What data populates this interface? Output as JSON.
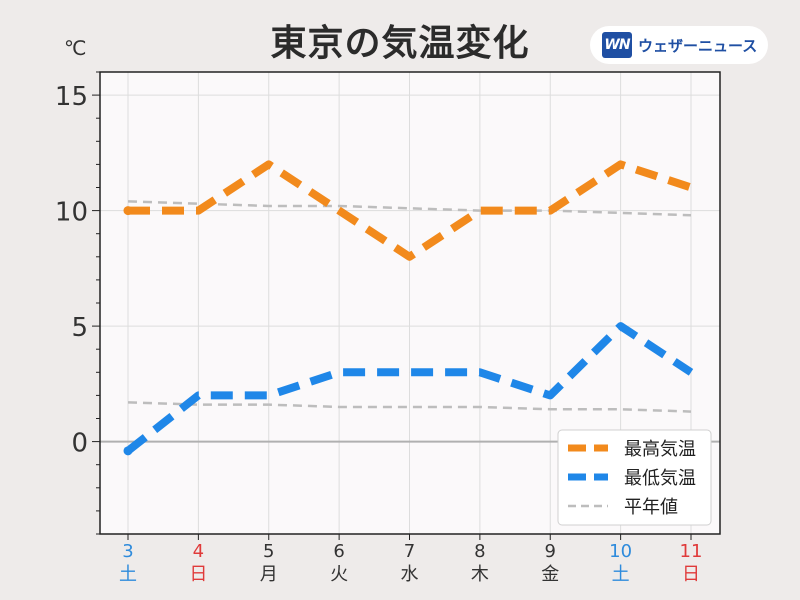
{
  "title": "東京の気温変化",
  "unit_label": "℃",
  "brand": {
    "logo_text": "WN",
    "name": "ウェザーニュース"
  },
  "colors": {
    "high": "#f28a1c",
    "low": "#1f87e8",
    "normal": "#bdbdbd",
    "saturday": "#2e8bdc",
    "sunday": "#e03a3a",
    "weekday": "#333333"
  },
  "chart_data": {
    "type": "line",
    "title": "東京の気温変化",
    "ylabel": "℃",
    "ylim": [
      -4,
      16
    ],
    "yticks": [
      0,
      5,
      10,
      15
    ],
    "grid": true,
    "legend_position": "bottom-right",
    "categories": [
      {
        "day": "3",
        "weekday": "土",
        "kind": "saturday"
      },
      {
        "day": "4",
        "weekday": "日",
        "kind": "sunday"
      },
      {
        "day": "5",
        "weekday": "月",
        "kind": "weekday"
      },
      {
        "day": "6",
        "weekday": "火",
        "kind": "weekday"
      },
      {
        "day": "7",
        "weekday": "水",
        "kind": "weekday"
      },
      {
        "day": "8",
        "weekday": "木",
        "kind": "weekday"
      },
      {
        "day": "9",
        "weekday": "金",
        "kind": "weekday"
      },
      {
        "day": "10",
        "weekday": "土",
        "kind": "saturday"
      },
      {
        "day": "11",
        "weekday": "日",
        "kind": "sunday"
      }
    ],
    "series": [
      {
        "name": "最高気温",
        "key": "high",
        "style": "dashed-thick",
        "values": [
          10,
          10,
          12,
          10,
          8,
          10,
          10,
          12,
          11
        ]
      },
      {
        "name": "最低気温",
        "key": "low",
        "style": "dashed-thick",
        "values": [
          -0.4,
          2,
          2,
          3,
          3,
          3,
          2,
          5,
          3
        ]
      },
      {
        "name": "平年値",
        "key": "normal",
        "style": "dashed-thin",
        "values": [
          10.4,
          10.3,
          10.2,
          10.2,
          10.1,
          10.0,
          10.0,
          9.9,
          9.8
        ]
      },
      {
        "name": "",
        "key": "normal",
        "style": "dashed-thin",
        "values": [
          1.7,
          1.6,
          1.6,
          1.5,
          1.5,
          1.5,
          1.4,
          1.4,
          1.3
        ]
      }
    ]
  }
}
